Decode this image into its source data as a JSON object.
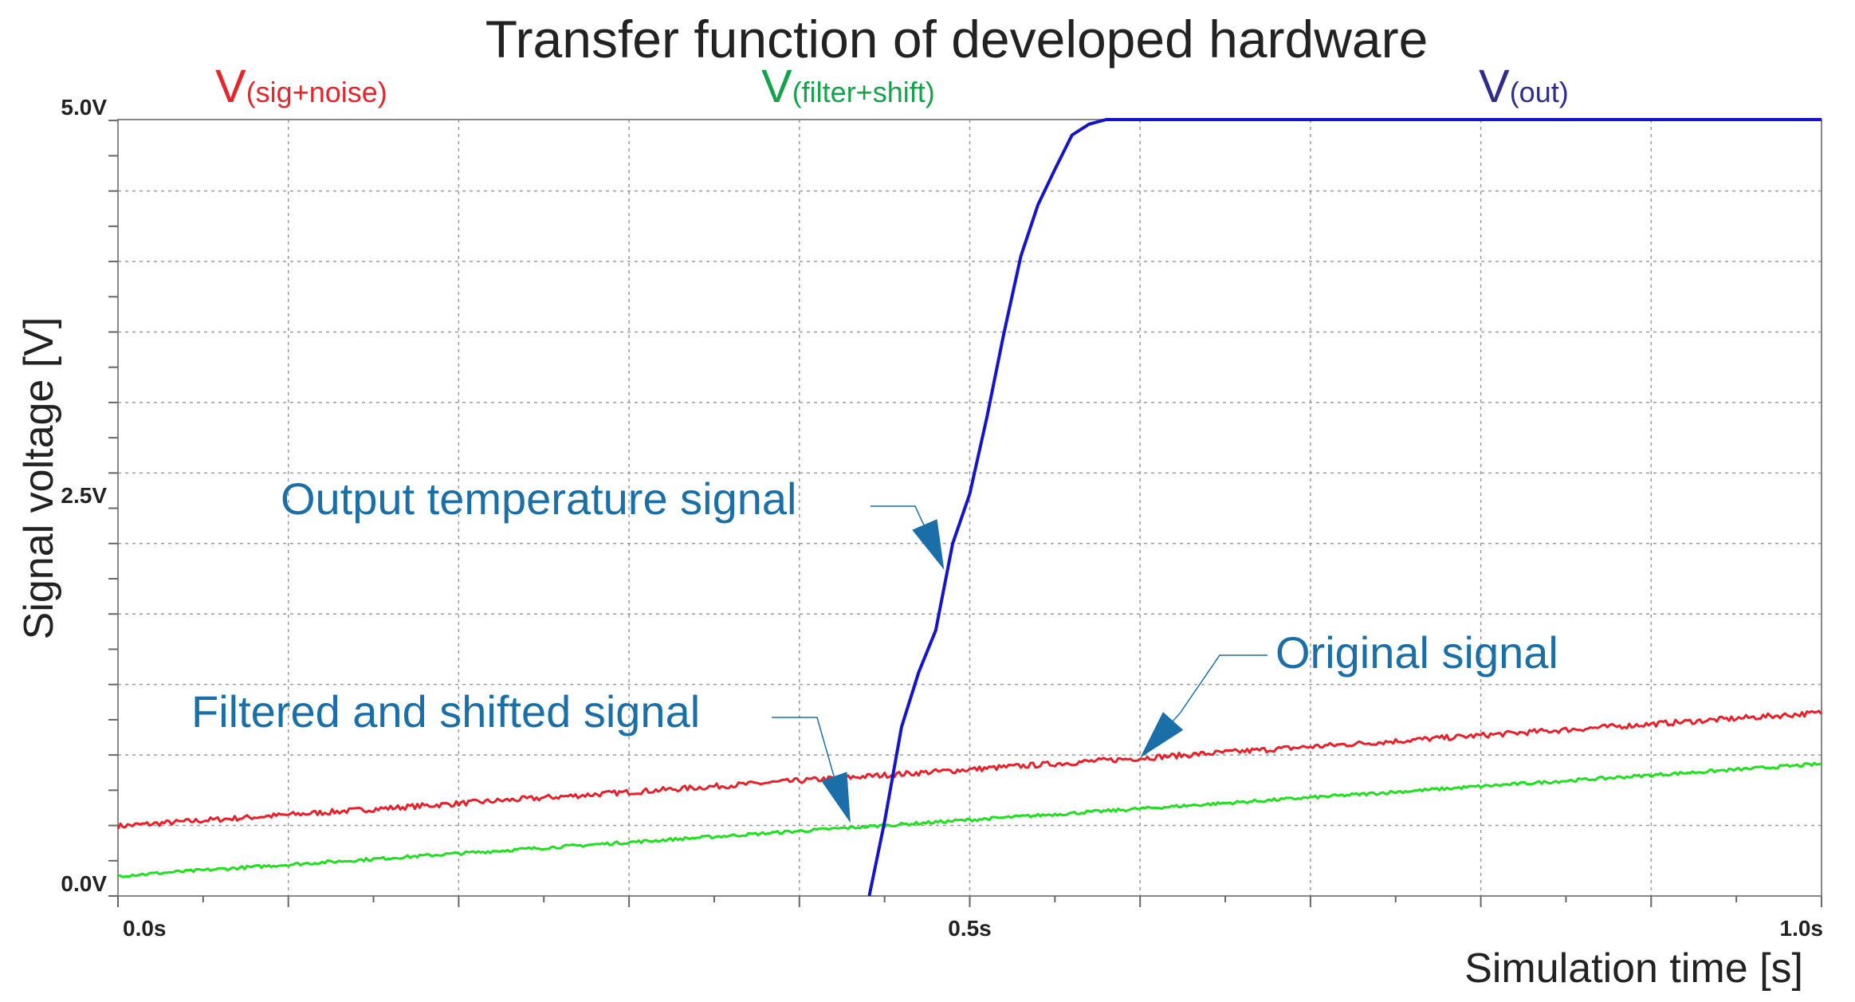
{
  "chart_data": {
    "type": "line",
    "title": "Transfer function of developed hardware",
    "xlabel": "Simulation time [s]",
    "ylabel": "Signal voltage [V]",
    "xlim": [
      0,
      1.0
    ],
    "ylim": [
      0,
      5.0
    ],
    "x_ticks": [
      {
        "value": 0.0,
        "label": "0.0s"
      },
      {
        "value": 0.5,
        "label": "0.5s"
      },
      {
        "value": 1.0,
        "label": "1.0s"
      }
    ],
    "y_ticks": [
      {
        "value": 0.0,
        "label": "0.0V"
      },
      {
        "value": 2.5,
        "label": "2.5V"
      },
      {
        "value": 5.0,
        "label": "5.0V"
      }
    ],
    "grid": true,
    "grid_x_step": 0.1,
    "grid_y_step": 0.454,
    "legend": [
      {
        "main": "V",
        "sub": "(sig+noise)",
        "color": "#e8242b"
      },
      {
        "main": "V",
        "sub": "(filter+shift)",
        "color": "#14a34a"
      },
      {
        "main": "V",
        "sub": "(out)",
        "color": "#2e2d8c"
      }
    ],
    "series": [
      {
        "color": "#e8202a",
        "x": [
          0.0,
          1.0
        ],
        "y": [
          0.45,
          1.18
        ]
      },
      {
        "color": "#1ee01e",
        "x": [
          0.0,
          1.0
        ],
        "y": [
          0.13,
          0.85
        ]
      },
      {
        "color": "#1414cc",
        "x": [
          0.441,
          0.45,
          0.46,
          0.47,
          0.48,
          0.49,
          0.5,
          0.51,
          0.52,
          0.53,
          0.54,
          0.55,
          0.56,
          0.57,
          0.58,
          0.59,
          0.6,
          1.0
        ],
        "y": [
          0.0,
          0.48,
          1.09,
          1.44,
          1.71,
          2.27,
          2.59,
          3.08,
          3.62,
          4.12,
          4.45,
          4.68,
          4.9,
          4.97,
          5.0,
          5.0,
          5.0,
          5.0
        ]
      }
    ],
    "annotations": [
      {
        "text": "Output temperature signal",
        "color": "#1b6fa8",
        "target": [
          0.485,
          2.1
        ]
      },
      {
        "text": "Original signal",
        "color": "#1b6fa8",
        "target": [
          0.6,
          0.89
        ]
      },
      {
        "text": "Filtered and shifted signal",
        "color": "#1b6fa8",
        "target": [
          0.43,
          0.47
        ]
      }
    ]
  }
}
